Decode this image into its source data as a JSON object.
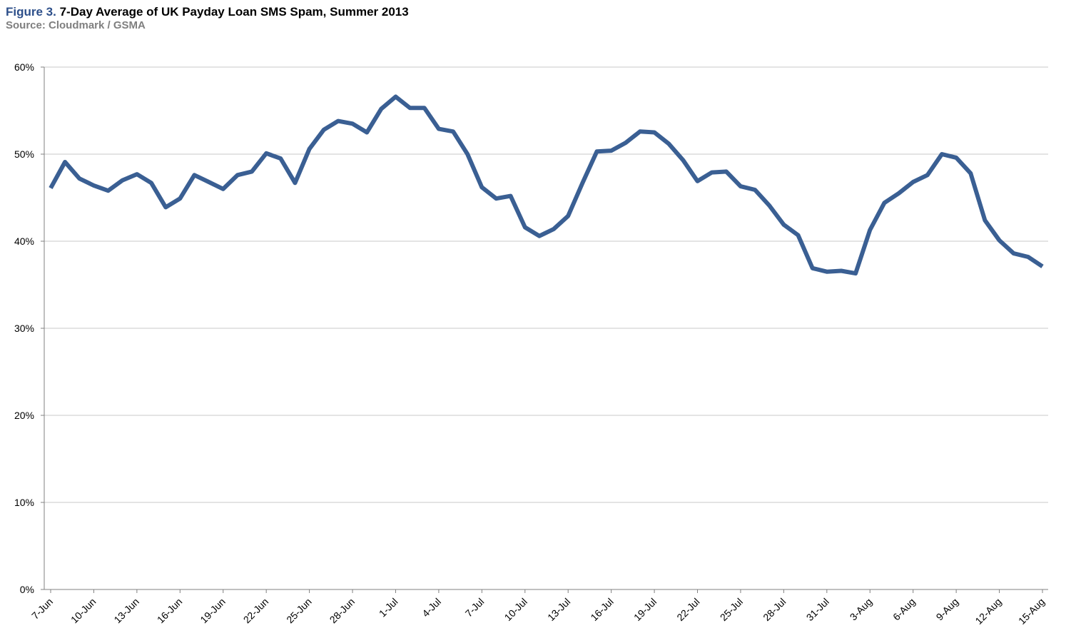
{
  "header": {
    "figure_label": "Figure 3.",
    "title": "7-Day Average of UK Payday Loan SMS Spam, Summer 2013",
    "source": "Source: Cloudmark / GSMA"
  },
  "colors": {
    "figure_label": "#2d4f8a",
    "series_line": "#3a5f93",
    "gridline": "#c8c8c8",
    "axis": "#808080",
    "source_text": "#7f7f7f"
  },
  "chart_data": {
    "type": "line",
    "title": "7-Day Average of UK Payday Loan SMS Spam, Summer 2013",
    "xlabel": "",
    "ylabel": "",
    "ylim": [
      0,
      60
    ],
    "y_ticks": [
      "0%",
      "10%",
      "20%",
      "30%",
      "40%",
      "50%",
      "60%"
    ],
    "y_tick_values": [
      0,
      10,
      20,
      30,
      40,
      50,
      60
    ],
    "grid": true,
    "legend": "none",
    "x_tick_labels": [
      "7-Jun",
      "10-Jun",
      "13-Jun",
      "16-Jun",
      "19-Jun",
      "22-Jun",
      "25-Jun",
      "28-Jun",
      "1-Jul",
      "4-Jul",
      "7-Jul",
      "10-Jul",
      "13-Jul",
      "16-Jul",
      "19-Jul",
      "22-Jul",
      "25-Jul",
      "28-Jul",
      "31-Jul",
      "3-Aug",
      "6-Aug",
      "9-Aug",
      "12-Aug",
      "15-Aug"
    ],
    "x": [
      "7-Jun",
      "8-Jun",
      "9-Jun",
      "10-Jun",
      "11-Jun",
      "12-Jun",
      "13-Jun",
      "14-Jun",
      "15-Jun",
      "16-Jun",
      "17-Jun",
      "18-Jun",
      "19-Jun",
      "20-Jun",
      "21-Jun",
      "22-Jun",
      "23-Jun",
      "24-Jun",
      "25-Jun",
      "26-Jun",
      "27-Jun",
      "28-Jun",
      "29-Jun",
      "30-Jun",
      "1-Jul",
      "2-Jul",
      "3-Jul",
      "4-Jul",
      "5-Jul",
      "6-Jul",
      "7-Jul",
      "8-Jul",
      "9-Jul",
      "10-Jul",
      "11-Jul",
      "12-Jul",
      "13-Jul",
      "14-Jul",
      "15-Jul",
      "16-Jul",
      "17-Jul",
      "18-Jul",
      "19-Jul",
      "20-Jul",
      "21-Jul",
      "22-Jul",
      "23-Jul",
      "24-Jul",
      "25-Jul",
      "26-Jul",
      "27-Jul",
      "28-Jul",
      "29-Jul",
      "30-Jul",
      "31-Jul",
      "1-Aug",
      "2-Aug",
      "3-Aug",
      "4-Aug",
      "5-Aug",
      "6-Aug",
      "7-Aug",
      "8-Aug",
      "9-Aug",
      "10-Aug",
      "11-Aug",
      "12-Aug",
      "13-Aug",
      "14-Aug",
      "15-Aug"
    ],
    "series": [
      {
        "values": [
          46.1,
          49.1,
          47.2,
          46.4,
          45.8,
          47.0,
          47.7,
          46.7,
          43.9,
          44.9,
          47.6,
          46.8,
          46.0,
          47.6,
          48.0,
          50.1,
          49.5,
          46.7,
          50.6,
          52.8,
          53.8,
          53.5,
          52.5,
          55.2,
          56.6,
          55.3,
          55.3,
          52.9,
          52.6,
          50.0,
          46.2,
          44.9,
          45.2,
          41.6,
          40.6,
          41.4,
          42.9,
          46.7,
          50.3,
          50.4,
          51.3,
          52.6,
          52.5,
          51.2,
          49.3,
          46.9,
          47.9,
          48.0,
          46.3,
          45.9,
          44.1,
          41.9,
          40.7,
          36.9,
          36.5,
          36.6,
          36.3,
          41.3,
          44.4,
          45.5,
          46.8,
          47.6,
          50.0,
          49.6,
          47.8,
          42.4,
          40.1,
          38.6,
          38.2,
          37.1
        ]
      }
    ]
  }
}
